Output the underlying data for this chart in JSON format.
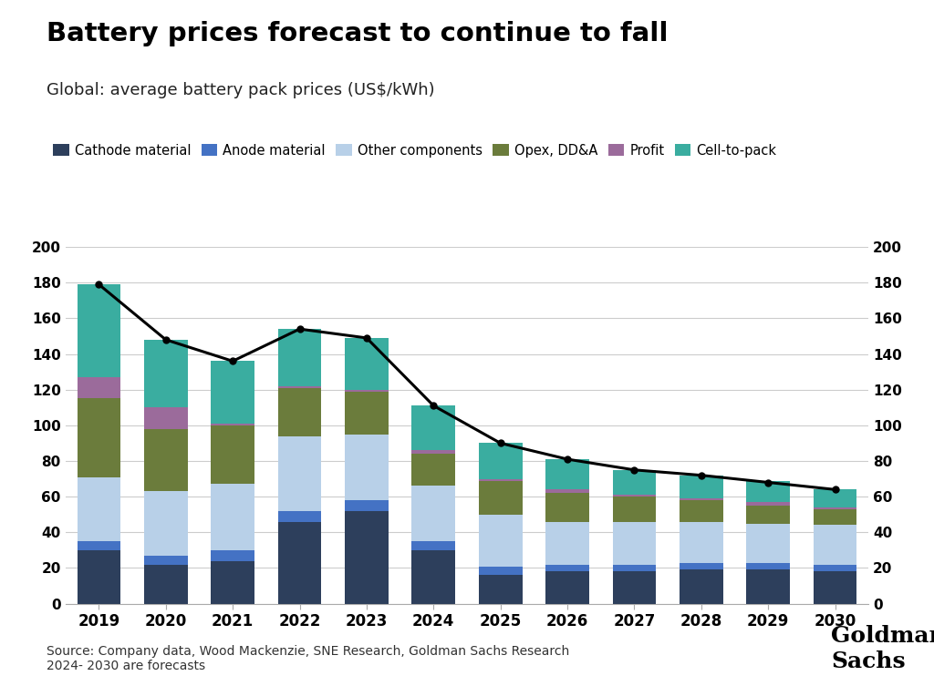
{
  "years": [
    2019,
    2020,
    2021,
    2022,
    2023,
    2024,
    2025,
    2026,
    2027,
    2028,
    2029,
    2030
  ],
  "cathode": [
    30,
    22,
    24,
    46,
    52,
    30,
    16,
    18,
    18,
    19,
    19,
    18
  ],
  "anode": [
    5,
    5,
    6,
    6,
    6,
    5,
    5,
    4,
    4,
    4,
    4,
    4
  ],
  "other_components": [
    36,
    36,
    37,
    42,
    37,
    31,
    29,
    24,
    24,
    23,
    22,
    22
  ],
  "opex": [
    44,
    35,
    33,
    27,
    24,
    18,
    19,
    16,
    14,
    12,
    10,
    9
  ],
  "profit": [
    12,
    12,
    1,
    1,
    1,
    2,
    1,
    2,
    1,
    1,
    2,
    1
  ],
  "cell_to_pack": [
    52,
    38,
    35,
    32,
    29,
    25,
    20,
    17,
    14,
    13,
    12,
    10
  ],
  "line_values": [
    179,
    148,
    136,
    154,
    149,
    111,
    90,
    81,
    75,
    72,
    68,
    64
  ],
  "colors": {
    "cathode": "#2d3f5c",
    "anode": "#4472c4",
    "other_components": "#b8d0e8",
    "opex": "#6b7c3c",
    "profit": "#9b6b9b",
    "cell_to_pack": "#3aada0"
  },
  "title": "Battery prices forecast to continue to fall",
  "subtitle": "Global: average battery pack prices (US$/kWh)",
  "legend_labels": [
    "Cathode material",
    "Anode material",
    "Other components",
    "Opex, DD&A",
    "Profit",
    "Cell-to-pack"
  ],
  "source_text": "Source: Company data, Wood Mackenzie, SNE Research, Goldman Sachs Research\n2024- 2030 are forecasts",
  "goldman_sachs": "Goldman\nSachs",
  "ylim": [
    0,
    200
  ],
  "yticks": [
    0,
    20,
    40,
    60,
    80,
    100,
    120,
    140,
    160,
    180,
    200
  ],
  "background_color": "#ffffff",
  "grid_color": "#cccccc"
}
